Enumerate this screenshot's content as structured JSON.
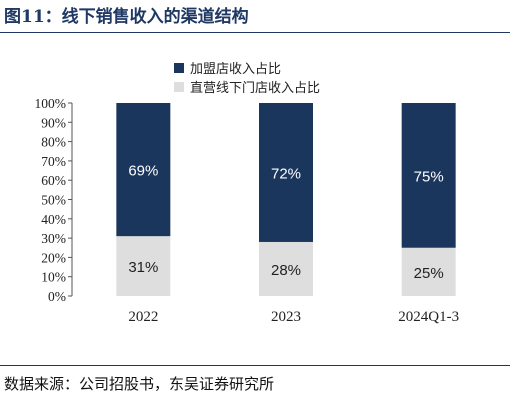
{
  "header": {
    "title": "图11：线下销售收入的渠道结构"
  },
  "footer": {
    "source": "数据来源：公司招股书，东吴证券研究所"
  },
  "chart_data": {
    "type": "bar",
    "stacked": true,
    "categories": [
      "2022",
      "2023",
      "2024Q1-3"
    ],
    "series": [
      {
        "name": "加盟店收入占比",
        "values": [
          69,
          72,
          75
        ],
        "labels": [
          "69%",
          "72%",
          "75%"
        ],
        "color": "#1b365d"
      },
      {
        "name": "直营线下门店收入占比",
        "values": [
          31,
          28,
          25
        ],
        "labels": [
          "31%",
          "28%",
          "25%"
        ],
        "color": "#dedede"
      }
    ],
    "ylim": [
      0,
      100
    ],
    "yticks": [
      "0%",
      "10%",
      "20%",
      "30%",
      "40%",
      "50%",
      "60%",
      "70%",
      "80%",
      "90%",
      "100%"
    ],
    "legend_position": "top",
    "grid": false
  }
}
